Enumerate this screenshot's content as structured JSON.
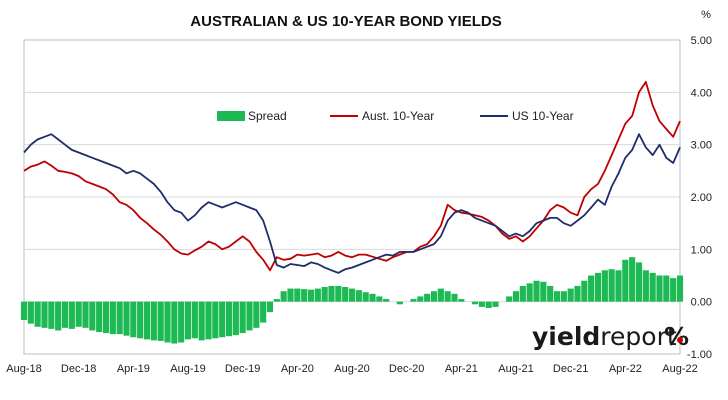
{
  "chart_data": {
    "type": "line",
    "title": "AUSTRALIAN & US 10-YEAR BOND YIELDS",
    "y_unit": "%",
    "ylim": [
      -1.0,
      5.0
    ],
    "y_ticks": [
      "5.00",
      "4.00",
      "3.00",
      "2.00",
      "1.00",
      "0.00",
      "-1.00"
    ],
    "y_axis_position": "right",
    "grid": "horizontal",
    "legend_position": "top-center",
    "x_tick_labels": [
      "Aug-18",
      "Dec-18",
      "Apr-19",
      "Aug-19",
      "Dec-19",
      "Apr-20",
      "Aug-20",
      "Dec-20",
      "Apr-21",
      "Aug-21",
      "Dec-21",
      "Apr-22",
      "Aug-22"
    ],
    "x_index": [
      0,
      4,
      8,
      12,
      16,
      20,
      24,
      28,
      32,
      36,
      40,
      44,
      48
    ],
    "series": [
      {
        "name": "Spread",
        "kind": "bar",
        "color": "#1db954",
        "x": [
          0,
          0.5,
          1,
          1.5,
          2,
          2.5,
          3,
          3.5,
          4,
          4.5,
          5,
          5.5,
          6,
          6.5,
          7,
          7.5,
          8,
          8.5,
          9,
          9.5,
          10,
          10.5,
          11,
          11.5,
          12,
          12.5,
          13,
          13.5,
          14,
          14.5,
          15,
          15.5,
          16,
          16.5,
          17,
          17.5,
          18,
          18.5,
          19,
          19.5,
          20,
          20.5,
          21,
          21.5,
          22,
          22.5,
          23,
          23.5,
          24,
          24.5,
          25,
          25.5,
          26,
          26.5,
          27,
          27.5,
          28,
          28.5,
          29,
          29.5,
          30,
          30.5,
          31,
          31.5,
          32,
          32.5,
          33,
          33.5,
          34,
          34.5,
          35,
          35.5,
          36,
          36.5,
          37,
          37.5,
          38,
          38.5,
          39,
          39.5,
          40,
          40.5,
          41,
          41.5,
          42,
          42.5,
          43,
          43.5,
          44,
          44.5,
          45,
          45.5,
          46,
          46.5,
          47,
          47.5,
          48
        ],
        "values": [
          -0.35,
          -0.42,
          -0.48,
          -0.5,
          -0.52,
          -0.55,
          -0.5,
          -0.52,
          -0.48,
          -0.5,
          -0.55,
          -0.58,
          -0.6,
          -0.62,
          -0.62,
          -0.65,
          -0.68,
          -0.7,
          -0.72,
          -0.74,
          -0.75,
          -0.78,
          -0.8,
          -0.78,
          -0.72,
          -0.7,
          -0.74,
          -0.72,
          -0.7,
          -0.68,
          -0.66,
          -0.64,
          -0.6,
          -0.55,
          -0.5,
          -0.4,
          -0.2,
          0.05,
          0.2,
          0.25,
          0.25,
          0.24,
          0.23,
          0.25,
          0.28,
          0.3,
          0.3,
          0.28,
          0.25,
          0.22,
          0.18,
          0.15,
          0.1,
          0.05,
          0.0,
          -0.05,
          0.0,
          0.05,
          0.1,
          0.15,
          0.2,
          0.25,
          0.2,
          0.15,
          0.05,
          0.0,
          -0.05,
          -0.1,
          -0.12,
          -0.1,
          0.0,
          0.1,
          0.2,
          0.3,
          0.35,
          0.4,
          0.38,
          0.3,
          0.2,
          0.2,
          0.25,
          0.3,
          0.4,
          0.5,
          0.55,
          0.6,
          0.62,
          0.6,
          0.8,
          0.85,
          0.75,
          0.6,
          0.55,
          0.5,
          0.5,
          0.45,
          0.5
        ]
      },
      {
        "name": "Aust. 10-Year",
        "kind": "line",
        "color": "#c00000",
        "x": [
          0,
          0.5,
          1,
          1.5,
          2,
          2.5,
          3,
          3.5,
          4,
          4.5,
          5,
          5.5,
          6,
          6.5,
          7,
          7.5,
          8,
          8.5,
          9,
          9.5,
          10,
          10.5,
          11,
          11.5,
          12,
          12.5,
          13,
          13.5,
          14,
          14.5,
          15,
          15.5,
          16,
          16.5,
          17,
          17.5,
          18,
          18.5,
          19,
          19.5,
          20,
          20.5,
          21,
          21.5,
          22,
          22.5,
          23,
          23.5,
          24,
          24.5,
          25,
          25.5,
          26,
          26.5,
          27,
          27.5,
          28,
          28.5,
          29,
          29.5,
          30,
          30.5,
          31,
          31.5,
          32,
          32.5,
          33,
          33.5,
          34,
          34.5,
          35,
          35.5,
          36,
          36.5,
          37,
          37.5,
          38,
          38.5,
          39,
          39.5,
          40,
          40.5,
          41,
          41.5,
          42,
          42.5,
          43,
          43.5,
          44,
          44.5,
          45,
          45.5,
          46,
          46.5,
          47,
          47.5,
          48
        ],
        "values": [
          2.5,
          2.58,
          2.62,
          2.68,
          2.6,
          2.5,
          2.48,
          2.45,
          2.4,
          2.3,
          2.25,
          2.2,
          2.15,
          2.05,
          1.9,
          1.85,
          1.75,
          1.6,
          1.5,
          1.38,
          1.28,
          1.15,
          1.0,
          0.92,
          0.9,
          0.98,
          1.05,
          1.15,
          1.1,
          1.0,
          1.05,
          1.15,
          1.25,
          1.15,
          0.95,
          0.8,
          0.6,
          0.85,
          0.8,
          0.82,
          0.9,
          0.88,
          0.9,
          0.92,
          0.85,
          0.88,
          0.95,
          0.88,
          0.85,
          0.9,
          0.9,
          0.86,
          0.82,
          0.78,
          0.85,
          0.9,
          0.95,
          0.95,
          1.05,
          1.1,
          1.25,
          1.45,
          1.85,
          1.75,
          1.7,
          1.68,
          1.65,
          1.62,
          1.55,
          1.45,
          1.3,
          1.2,
          1.25,
          1.15,
          1.25,
          1.4,
          1.55,
          1.75,
          1.85,
          1.8,
          1.7,
          1.65,
          2.0,
          2.15,
          2.25,
          2.5,
          2.8,
          3.1,
          3.4,
          3.55,
          4.0,
          4.2,
          3.75,
          3.45,
          3.3,
          3.15,
          3.45
        ]
      },
      {
        "name": "US 10-Year",
        "kind": "line",
        "color": "#1f2d6b",
        "x": [
          0,
          0.5,
          1,
          1.5,
          2,
          2.5,
          3,
          3.5,
          4,
          4.5,
          5,
          5.5,
          6,
          6.5,
          7,
          7.5,
          8,
          8.5,
          9,
          9.5,
          10,
          10.5,
          11,
          11.5,
          12,
          12.5,
          13,
          13.5,
          14,
          14.5,
          15,
          15.5,
          16,
          16.5,
          17,
          17.5,
          18,
          18.5,
          19,
          19.5,
          20,
          20.5,
          21,
          21.5,
          22,
          22.5,
          23,
          23.5,
          24,
          24.5,
          25,
          25.5,
          26,
          26.5,
          27,
          27.5,
          28,
          28.5,
          29,
          29.5,
          30,
          30.5,
          31,
          31.5,
          32,
          32.5,
          33,
          33.5,
          34,
          34.5,
          35,
          35.5,
          36,
          36.5,
          37,
          37.5,
          38,
          38.5,
          39,
          39.5,
          40,
          40.5,
          41,
          41.5,
          42,
          42.5,
          43,
          43.5,
          44,
          44.5,
          45,
          45.5,
          46,
          46.5,
          47,
          47.5,
          48
        ],
        "values": [
          2.85,
          3.0,
          3.1,
          3.15,
          3.2,
          3.1,
          3.0,
          2.9,
          2.85,
          2.8,
          2.75,
          2.7,
          2.65,
          2.6,
          2.55,
          2.45,
          2.5,
          2.45,
          2.35,
          2.25,
          2.1,
          1.9,
          1.75,
          1.7,
          1.55,
          1.65,
          1.8,
          1.9,
          1.85,
          1.8,
          1.85,
          1.9,
          1.85,
          1.8,
          1.75,
          1.55,
          1.15,
          0.7,
          0.65,
          0.72,
          0.7,
          0.68,
          0.75,
          0.72,
          0.65,
          0.6,
          0.55,
          0.62,
          0.65,
          0.7,
          0.75,
          0.8,
          0.85,
          0.9,
          0.88,
          0.95,
          0.95,
          0.95,
          1.0,
          1.05,
          1.1,
          1.25,
          1.55,
          1.7,
          1.75,
          1.7,
          1.6,
          1.55,
          1.5,
          1.45,
          1.35,
          1.25,
          1.3,
          1.25,
          1.35,
          1.5,
          1.55,
          1.6,
          1.6,
          1.5,
          1.45,
          1.55,
          1.65,
          1.8,
          1.95,
          1.85,
          2.2,
          2.45,
          2.75,
          2.9,
          3.2,
          2.95,
          2.8,
          3.0,
          2.75,
          2.65,
          2.95
        ]
      }
    ]
  },
  "logo": {
    "text_main": "yield",
    "text_accent": "report",
    "symbol": "%"
  }
}
